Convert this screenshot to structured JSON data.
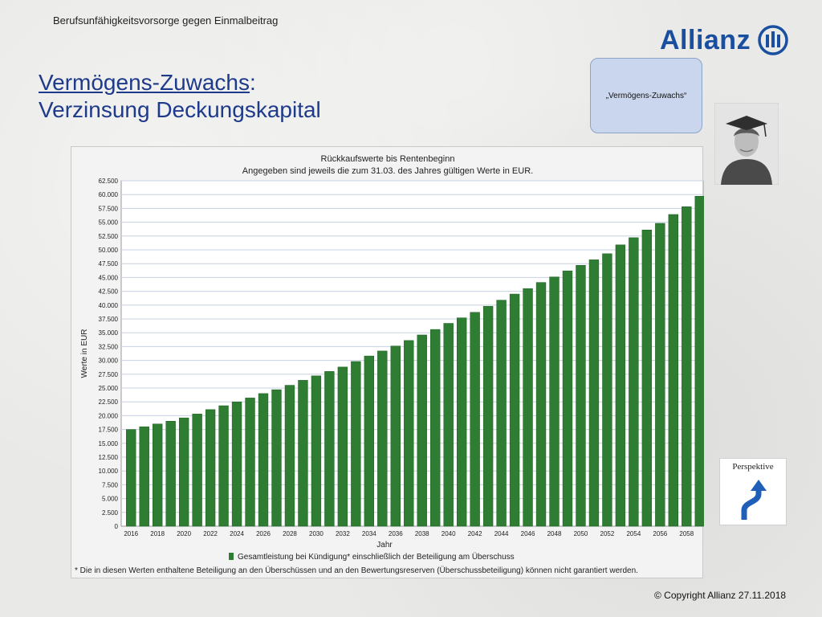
{
  "slide": {
    "header_caption": "Berufsunfähigkeitsvorsorge gegen Einmalbeitrag",
    "logo_text": "Allianz",
    "title_underlined": "Vermögens-Zuwachs",
    "title_colon": ":",
    "title_line2": "Verzinsung Deckungskapital",
    "note_box_text": "„Vermögens-Zuwachs“",
    "perspektive_label": "Perspektive",
    "copyright": "© Copyright Allianz 27.11.2018"
  },
  "colors": {
    "bar": "#2e7d32",
    "bar_edge": "#1b5e20",
    "title": "#1e3a8a",
    "logo": "#1a4fa0",
    "plot_bg": "#ffffff",
    "grid": "#c8d0e0"
  },
  "chart_data": {
    "type": "bar",
    "title": "Rückkaufswerte bis Rentenbeginn",
    "subtitle": "Angegeben sind jeweils die zum 31.03. des Jahres gültigen Werte in EUR.",
    "xlabel": "Jahr",
    "ylabel": "Werte in EUR",
    "ylim": [
      0,
      62500
    ],
    "yticks": [
      "0",
      "2.500",
      "5.000",
      "7.500",
      "10.000",
      "12.500",
      "15.000",
      "17.500",
      "20.000",
      "22.500",
      "25.000",
      "27.500",
      "30.000",
      "32.500",
      "35.000",
      "37.500",
      "40.000",
      "42.500",
      "45.000",
      "47.500",
      "50.000",
      "52.500",
      "55.000",
      "57.500",
      "60.000",
      "62.500"
    ],
    "xtick_labels": [
      "2016",
      "2018",
      "2020",
      "2022",
      "2024",
      "2026",
      "2028",
      "2030",
      "2032",
      "2034",
      "2036",
      "2038",
      "2040",
      "2042",
      "2044",
      "2046",
      "2048",
      "2050",
      "2052",
      "2054",
      "2056",
      "2058"
    ],
    "categories": [
      "2016",
      "2017",
      "2018",
      "2019",
      "2020",
      "2021",
      "2022",
      "2023",
      "2024",
      "2025",
      "2026",
      "2027",
      "2028",
      "2029",
      "2030",
      "2031",
      "2032",
      "2033",
      "2034",
      "2035",
      "2036",
      "2037",
      "2038",
      "2039",
      "2040",
      "2041",
      "2042",
      "2043",
      "2044",
      "2045",
      "2046",
      "2047",
      "2048",
      "2049",
      "2050",
      "2051",
      "2052",
      "2053",
      "2054",
      "2055",
      "2056",
      "2057",
      "2058",
      "2059"
    ],
    "series": [
      {
        "name": "Gesamtleistung bei Kündigung* einschließlich der Beteiligung am Überschuss",
        "values": [
          17500,
          18000,
          18500,
          19000,
          19600,
          20300,
          21100,
          21800,
          22500,
          23200,
          24000,
          24700,
          25500,
          26400,
          27200,
          28000,
          28800,
          29800,
          30800,
          31700,
          32600,
          33600,
          34600,
          35600,
          36700,
          37700,
          38700,
          39800,
          40900,
          42000,
          43000,
          44100,
          45100,
          46200,
          47200,
          48200,
          49300,
          50900,
          52200,
          53600,
          54800,
          56400,
          57800,
          59700
        ]
      }
    ],
    "grid": true,
    "legend_position": "bottom",
    "footnote": "* Die in diesen Werten enthaltene Beteiligung an den Überschüssen und an den Bewertungsreserven (Überschussbeteiligung) können nicht garantiert werden."
  }
}
